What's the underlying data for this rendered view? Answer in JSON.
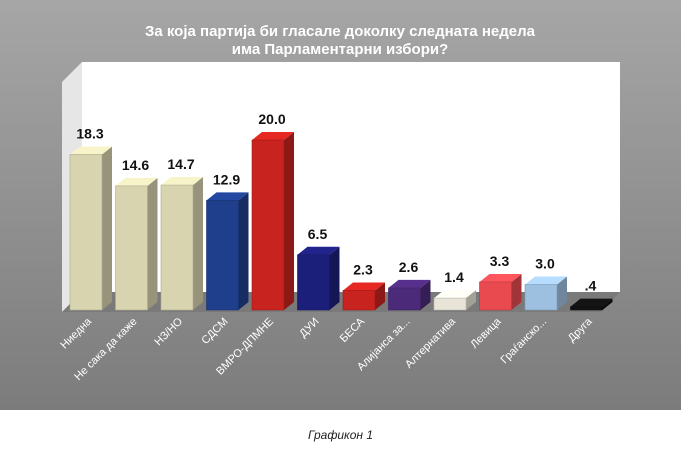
{
  "chart_data": {
    "type": "bar",
    "title_line1": "За која партија би гласале доколку следната недела",
    "title_line2": "има Парламентарни  избори?",
    "categories": [
      "Ниедна",
      "Не сака да каже",
      "НЗ/НО",
      "СДСМ",
      "ВМРО-ДПМНЕ",
      "ДУИ",
      "БЕСА",
      "Алијанса за...",
      "Алтернатива",
      "Левица",
      "Граѓанско...",
      "Друга"
    ],
    "values": [
      18.3,
      14.6,
      14.7,
      12.9,
      20.0,
      6.5,
      2.3,
      2.6,
      1.4,
      3.3,
      3.0,
      0.4
    ],
    "value_labels": [
      "18.3",
      "14.6",
      "14.7",
      "12.9",
      "20.0",
      "6.5",
      "2.3",
      "2.6",
      "1.4",
      "3.3",
      "3.0",
      ".4"
    ],
    "bar_colors": [
      "#d8d4b0",
      "#d8d4b0",
      "#d8d4b0",
      "#1f3f8c",
      "#c8231e",
      "#1c1f7a",
      "#c8231e",
      "#4b2a7a",
      "#e8e4d8",
      "#e84a50",
      "#9ec0e0",
      "#111111"
    ],
    "ylim": [
      0,
      20
    ],
    "grid": false,
    "legend": "none",
    "colors": {
      "frame": "#8a8a8a",
      "title": "#ffffff",
      "plot_bg": "#ffffff",
      "floor": "#7a7a7a"
    }
  },
  "caption": "Графикон 1"
}
